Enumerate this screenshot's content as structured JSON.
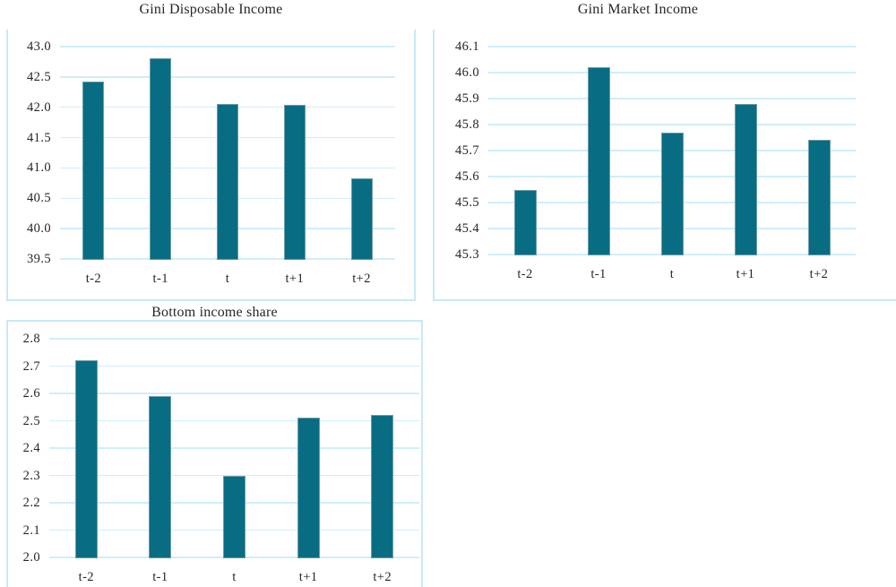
{
  "styles": {
    "bar_color": "#086c82",
    "bar_edge_color": "#6b9dab",
    "grid_color": "#cfeef9",
    "frame_color": "#c7e9f6",
    "text_color": "#262626",
    "background": "#ffffff"
  },
  "chart_data": [
    {
      "type": "bar",
      "title": "Gini Disposable Income",
      "categories": [
        "t-2",
        "t-1",
        "t",
        "t+1",
        "t+2"
      ],
      "values": [
        42.42,
        42.81,
        42.06,
        42.04,
        40.83
      ],
      "ylim": [
        39.5,
        43.0
      ],
      "ytick_step": 0.5,
      "ytick_labels": [
        "43.0",
        "42.5",
        "42.0",
        "41.5",
        "41.0",
        "40.5",
        "40.0",
        "39.5"
      ],
      "xlabel": "",
      "ylabel": "",
      "grid": true,
      "legend": false
    },
    {
      "type": "bar",
      "title": "Gini Market Income",
      "categories": [
        "t-2",
        "t-1",
        "t",
        "t+1",
        "t+2"
      ],
      "values": [
        45.55,
        46.02,
        45.77,
        45.88,
        45.74
      ],
      "ylim": [
        45.3,
        46.1
      ],
      "ytick_step": 0.1,
      "ytick_labels": [
        "46.1",
        "46.0",
        "45.9",
        "45.8",
        "45.7",
        "45.6",
        "45.5",
        "45.4",
        "45.3"
      ],
      "xlabel": "",
      "ylabel": "",
      "grid": true,
      "legend": false
    },
    {
      "type": "bar",
      "title": "Bottom income share",
      "categories": [
        "t-2",
        "t-1",
        "t",
        "t+1",
        "t+2"
      ],
      "values": [
        2.72,
        2.59,
        2.3,
        2.51,
        2.52
      ],
      "ylim": [
        2.0,
        2.8
      ],
      "ytick_step": 0.1,
      "ytick_labels": [
        "2.8",
        "2.7",
        "2.6",
        "2.5",
        "2.4",
        "2.3",
        "2.2",
        "2.1",
        "2.0"
      ],
      "xlabel": "",
      "ylabel": "",
      "grid": true,
      "legend": false
    }
  ]
}
